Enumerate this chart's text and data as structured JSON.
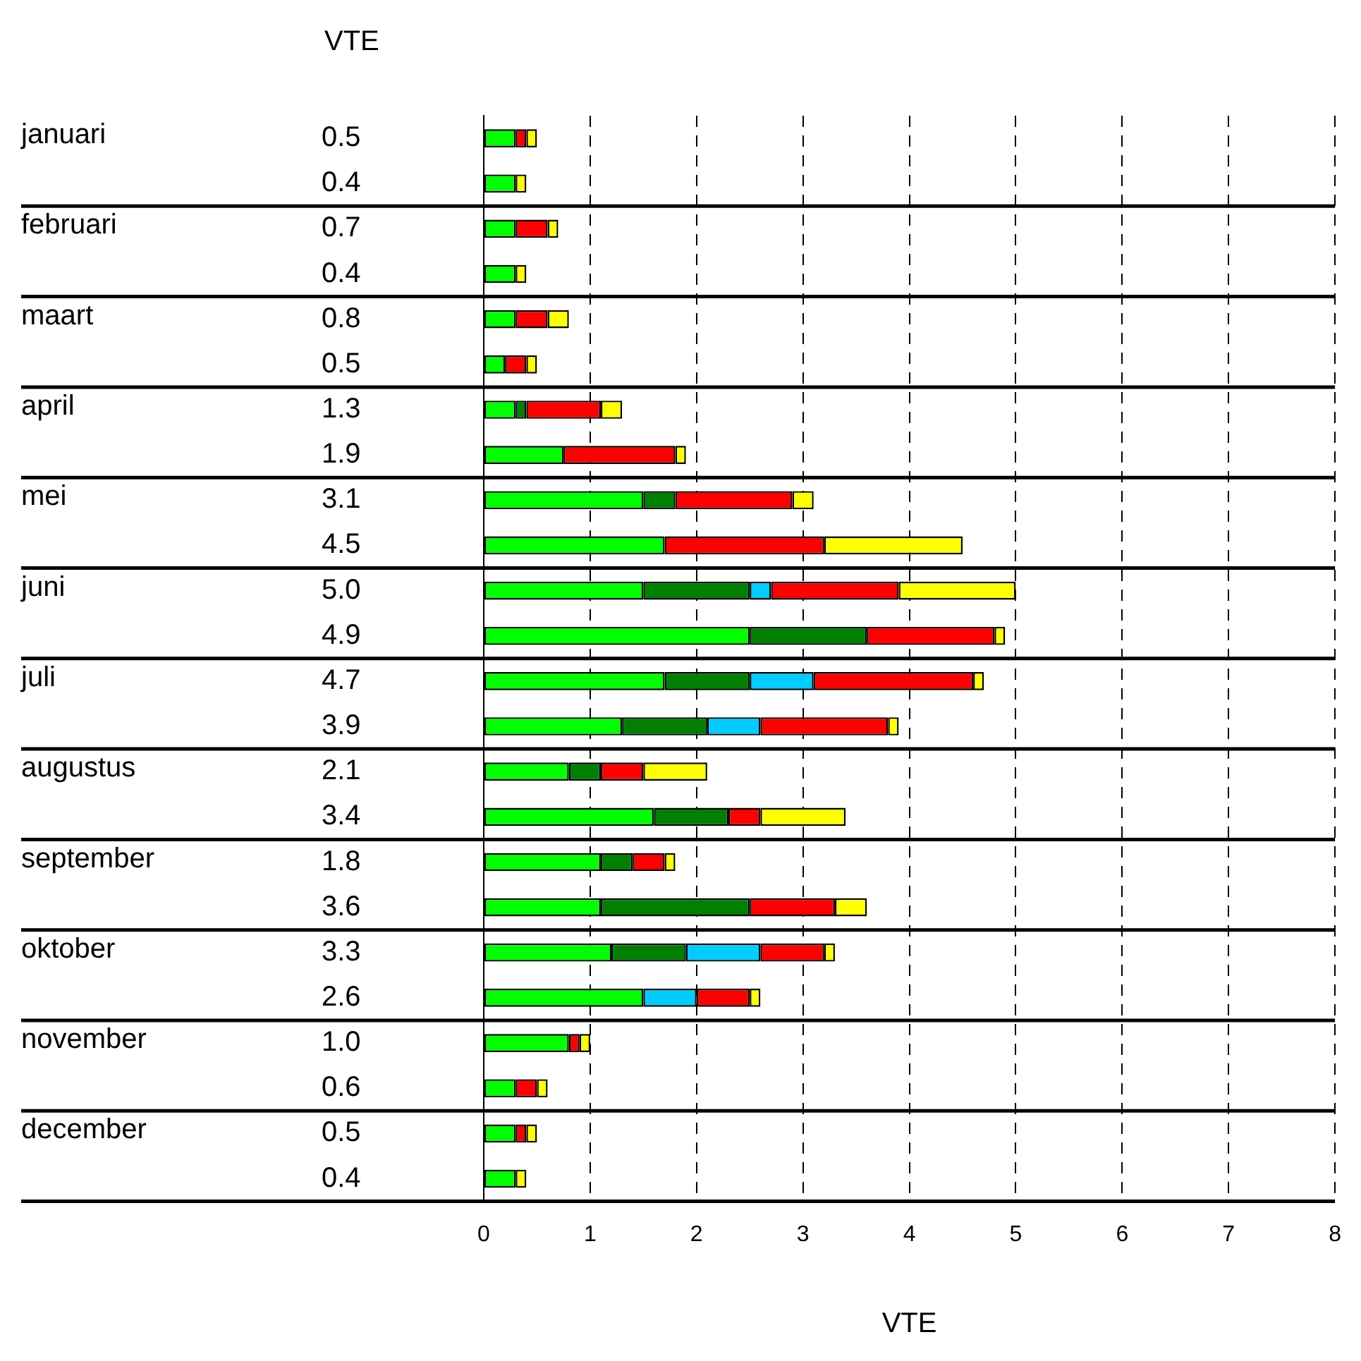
{
  "chart_data": {
    "type": "bar",
    "orientation": "horizontal",
    "stacked": true,
    "xlabel": "VTE",
    "annotations": [
      "VTE",
      "januari",
      "februari",
      "maart",
      "april",
      "mei",
      "juni",
      "juli",
      "augustus",
      "september",
      "oktober",
      "november",
      "december"
    ],
    "categories": [
      "0.5",
      "0.4",
      "0.7",
      "0.4",
      "0.8",
      "0.5",
      "1.3",
      "1.9",
      "3.1",
      "4.5",
      "5.0",
      "4.9",
      "4.7",
      "3.9",
      "2.1",
      "3.4",
      "1.8",
      "3.6",
      "3.3",
      "2.6",
      "1.0",
      "0.6",
      "0.5",
      "0.4"
    ],
    "series": [
      {
        "color": "#00ff00",
        "values": [
          0.3,
          0.3,
          0.3,
          0.3,
          0.3,
          0.2,
          0.3,
          0.75,
          1.5,
          1.7,
          1.5,
          2.5,
          1.7,
          1.3,
          0.8,
          1.6,
          1.1,
          1.1,
          1.2,
          1.5,
          0.8,
          0.3,
          0.3,
          0.3
        ]
      },
      {
        "color": "#008000",
        "values": [
          null,
          null,
          null,
          null,
          null,
          null,
          0.1,
          null,
          0.3,
          null,
          1.0,
          1.1,
          0.8,
          0.8,
          0.3,
          0.7,
          0.3,
          1.4,
          0.7,
          null,
          null,
          null,
          null,
          null
        ]
      },
      {
        "color": "#00ccff",
        "values": [
          null,
          null,
          null,
          null,
          null,
          null,
          null,
          null,
          null,
          null,
          0.2,
          null,
          0.6,
          0.5,
          null,
          null,
          null,
          null,
          0.7,
          0.5,
          null,
          null,
          null,
          null
        ]
      },
      {
        "color": "#ff0000",
        "values": [
          0.1,
          null,
          0.3,
          null,
          0.3,
          0.2,
          0.7,
          1.05,
          1.1,
          1.5,
          1.2,
          1.2,
          1.5,
          1.2,
          0.4,
          0.3,
          0.3,
          0.8,
          0.6,
          0.5,
          0.1,
          0.2,
          0.1,
          null
        ]
      },
      {
        "color": "#ffff00",
        "values": [
          0.1,
          0.1,
          0.1,
          0.1,
          0.2,
          0.1,
          0.2,
          0.1,
          0.2,
          1.3,
          1.1,
          0.1,
          0.1,
          0.1,
          0.6,
          0.8,
          0.1,
          0.3,
          0.1,
          0.1,
          0.1,
          0.1,
          0.1,
          0.1
        ]
      }
    ],
    "xlim": [
      0,
      8
    ],
    "xticks": [
      0,
      1,
      2,
      3,
      4,
      5,
      6,
      7,
      8
    ],
    "grid": "x",
    "legend": false
  }
}
